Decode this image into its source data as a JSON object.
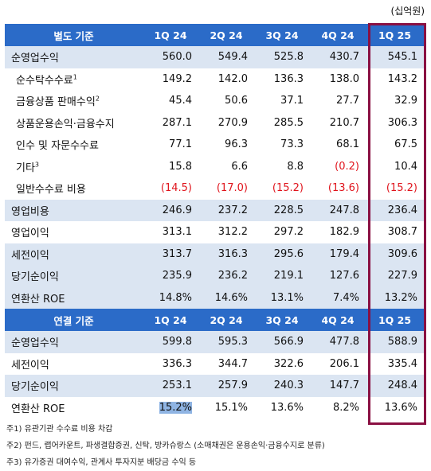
{
  "unit_label": "(십억원)",
  "separate": {
    "title": "별도 기준",
    "periods": [
      "1Q 24",
      "2Q 24",
      "3Q 24",
      "4Q 24",
      "1Q 25"
    ],
    "rows": [
      {
        "label": "순영업수익",
        "values": [
          "560.0",
          "549.4",
          "525.8",
          "430.7",
          "545.1"
        ]
      },
      {
        "label": "순수탁수수료",
        "note": "1",
        "values": [
          "149.2",
          "142.0",
          "136.3",
          "138.0",
          "143.2"
        ]
      },
      {
        "label": "금융상품 판매수익",
        "note": "2",
        "values": [
          "45.4",
          "50.6",
          "37.1",
          "27.7",
          "32.9"
        ]
      },
      {
        "label": "상품운용손익·금융수지",
        "values": [
          "287.1",
          "270.9",
          "285.5",
          "210.7",
          "306.3"
        ]
      },
      {
        "label": "인수 및 자문수수료",
        "values": [
          "77.1",
          "96.3",
          "73.3",
          "68.1",
          "67.5"
        ]
      },
      {
        "label": "기타",
        "note": "3",
        "values": [
          "15.8",
          "6.6",
          "8.8",
          "(0.2)",
          "10.4"
        ]
      },
      {
        "label": "일반수수료 비용",
        "values": [
          "(14.5)",
          "(17.0)",
          "(15.2)",
          "(13.6)",
          "(15.2)"
        ]
      },
      {
        "label": "영업비용",
        "values": [
          "246.9",
          "237.2",
          "228.5",
          "247.8",
          "236.4"
        ]
      },
      {
        "label": "영업이익",
        "values": [
          "313.1",
          "312.2",
          "297.2",
          "182.9",
          "308.7"
        ]
      },
      {
        "label": "세전이익",
        "values": [
          "313.7",
          "316.3",
          "295.6",
          "179.4",
          "309.6"
        ]
      },
      {
        "label": "당기순이익",
        "values": [
          "235.9",
          "236.2",
          "219.1",
          "127.6",
          "227.9"
        ]
      },
      {
        "label": "연환산 ROE",
        "values": [
          "14.8%",
          "14.6%",
          "13.1%",
          "7.4%",
          "13.2%"
        ]
      }
    ]
  },
  "consolidated": {
    "title": "연결 기준",
    "periods": [
      "1Q 24",
      "2Q 24",
      "3Q 24",
      "4Q 24",
      "1Q 25"
    ],
    "rows": [
      {
        "label": "순영업수익",
        "values": [
          "599.8",
          "595.3",
          "566.9",
          "477.8",
          "588.9"
        ]
      },
      {
        "label": "세전이익",
        "values": [
          "336.3",
          "344.7",
          "322.6",
          "206.1",
          "335.4"
        ]
      },
      {
        "label": "당기순이익",
        "values": [
          "253.1",
          "257.9",
          "240.3",
          "147.7",
          "248.4"
        ]
      },
      {
        "label": "연환산 ROE",
        "values": [
          "15.2%",
          "15.1%",
          "13.6%",
          "8.2%",
          "13.6%"
        ]
      }
    ]
  },
  "footnotes": [
    "주1) 유관기관 수수료 비용 차감",
    "주2) 펀드, 랩어카운트, 파생결합증권, 신탁, 방카슈랑스 (소매채권은 운용손익·금융수지로 분류)",
    "주3) 유가증권 대여수익, 관계사 투자지분 배당금 수익 등"
  ],
  "colors": {
    "header": "#2b6bc8",
    "shade": "#dbe5f2",
    "negative": "#e0141c",
    "highlight_box": "#8a1042"
  }
}
